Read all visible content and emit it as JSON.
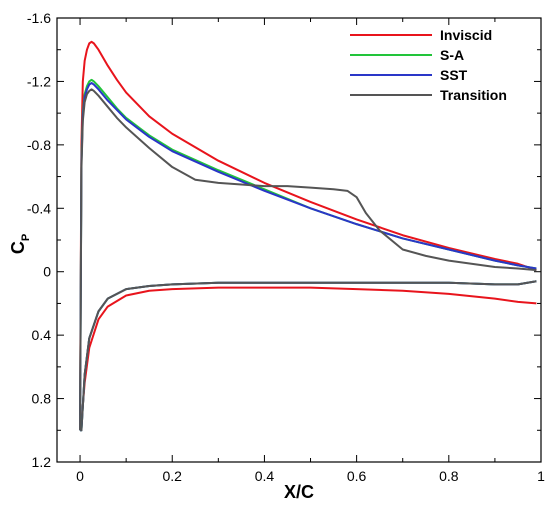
{
  "chart_data": {
    "type": "line",
    "title": "",
    "xlabel": "X/C",
    "ylabel_main": "C",
    "ylabel_sub": "P",
    "xlim": [
      -0.05,
      1.0
    ],
    "ylim": [
      -1.6,
      1.2
    ],
    "y_inverted": true,
    "x_ticks": [
      0,
      0.2,
      0.4,
      0.6,
      0.8,
      1
    ],
    "x_tick_labels": [
      "0",
      "0.2",
      "0.4",
      "0.6",
      "0.8",
      "1"
    ],
    "y_ticks": [
      -1.6,
      -1.2,
      -0.8,
      -0.4,
      0,
      0.4,
      0.8,
      1.2
    ],
    "y_tick_labels": [
      "-1.6",
      "-1.2",
      "-0.8",
      "-0.4",
      "0",
      "0.4",
      "0.8",
      "1.2"
    ],
    "grid": false,
    "legend_position": "top-right",
    "series": [
      {
        "name": "Inviscid",
        "color": "#e8141c",
        "upper": {
          "x": [
            0.0,
            0.003,
            0.006,
            0.01,
            0.015,
            0.02,
            0.025,
            0.03,
            0.04,
            0.06,
            0.08,
            0.1,
            0.15,
            0.2,
            0.3,
            0.4,
            0.5,
            0.6,
            0.7,
            0.8,
            0.9,
            0.95,
            0.99
          ],
          "y": [
            0.9,
            -0.8,
            -1.2,
            -1.33,
            -1.4,
            -1.44,
            -1.45,
            -1.44,
            -1.4,
            -1.3,
            -1.21,
            -1.13,
            -0.98,
            -0.87,
            -0.7,
            -0.56,
            -0.44,
            -0.33,
            -0.23,
            -0.15,
            -0.08,
            -0.05,
            -0.01
          ]
        },
        "lower": {
          "x": [
            0.0,
            0.003,
            0.01,
            0.02,
            0.04,
            0.06,
            0.1,
            0.15,
            0.2,
            0.3,
            0.4,
            0.5,
            0.6,
            0.7,
            0.8,
            0.9,
            0.95,
            0.99
          ],
          "y": [
            0.9,
            0.95,
            0.7,
            0.48,
            0.3,
            0.22,
            0.15,
            0.12,
            0.11,
            0.1,
            0.1,
            0.1,
            0.11,
            0.12,
            0.14,
            0.17,
            0.19,
            0.2
          ]
        }
      },
      {
        "name": "S-A",
        "color": "#22c43a",
        "upper": {
          "x": [
            0.0,
            0.003,
            0.006,
            0.01,
            0.015,
            0.02,
            0.025,
            0.03,
            0.04,
            0.06,
            0.08,
            0.1,
            0.15,
            0.2,
            0.3,
            0.4,
            0.5,
            0.6,
            0.7,
            0.8,
            0.9,
            0.95,
            0.99
          ],
          "y": [
            1.0,
            -0.7,
            -1.0,
            -1.12,
            -1.17,
            -1.2,
            -1.21,
            -1.2,
            -1.17,
            -1.1,
            -1.03,
            -0.97,
            -0.86,
            -0.77,
            -0.64,
            -0.52,
            -0.4,
            -0.3,
            -0.21,
            -0.14,
            -0.07,
            -0.04,
            -0.02
          ]
        },
        "lower": {
          "x": [
            0.0,
            0.003,
            0.01,
            0.02,
            0.04,
            0.06,
            0.1,
            0.15,
            0.2,
            0.3,
            0.4,
            0.5,
            0.6,
            0.7,
            0.8,
            0.9,
            0.95,
            0.99
          ],
          "y": [
            1.0,
            1.0,
            0.65,
            0.42,
            0.25,
            0.17,
            0.11,
            0.09,
            0.08,
            0.07,
            0.07,
            0.07,
            0.07,
            0.07,
            0.07,
            0.08,
            0.08,
            0.06
          ]
        }
      },
      {
        "name": "SST",
        "color": "#2a36c8",
        "upper": {
          "x": [
            0.0,
            0.003,
            0.006,
            0.01,
            0.015,
            0.02,
            0.025,
            0.03,
            0.04,
            0.06,
            0.08,
            0.1,
            0.15,
            0.2,
            0.3,
            0.4,
            0.5,
            0.6,
            0.7,
            0.8,
            0.9,
            0.95,
            0.99
          ],
          "y": [
            1.0,
            -0.68,
            -0.98,
            -1.1,
            -1.15,
            -1.18,
            -1.19,
            -1.18,
            -1.15,
            -1.08,
            -1.02,
            -0.96,
            -0.85,
            -0.76,
            -0.63,
            -0.51,
            -0.4,
            -0.3,
            -0.21,
            -0.14,
            -0.07,
            -0.04,
            -0.02
          ]
        },
        "lower": {
          "x": [
            0.0,
            0.003,
            0.01,
            0.02,
            0.04,
            0.06,
            0.1,
            0.15,
            0.2,
            0.3,
            0.4,
            0.5,
            0.6,
            0.7,
            0.8,
            0.9,
            0.95,
            0.99
          ],
          "y": [
            1.0,
            1.0,
            0.65,
            0.42,
            0.25,
            0.17,
            0.11,
            0.09,
            0.08,
            0.07,
            0.07,
            0.07,
            0.07,
            0.07,
            0.07,
            0.08,
            0.08,
            0.06
          ]
        }
      },
      {
        "name": "Transition",
        "color": "#555555",
        "upper": {
          "x": [
            0.0,
            0.003,
            0.006,
            0.01,
            0.015,
            0.02,
            0.025,
            0.03,
            0.04,
            0.06,
            0.08,
            0.1,
            0.15,
            0.2,
            0.25,
            0.3,
            0.35,
            0.4,
            0.45,
            0.5,
            0.55,
            0.58,
            0.6,
            0.62,
            0.65,
            0.7,
            0.75,
            0.8,
            0.9,
            0.95,
            0.99
          ],
          "y": [
            1.0,
            -0.65,
            -0.95,
            -1.07,
            -1.12,
            -1.14,
            -1.15,
            -1.14,
            -1.11,
            -1.04,
            -0.97,
            -0.91,
            -0.78,
            -0.66,
            -0.58,
            -0.56,
            -0.55,
            -0.54,
            -0.54,
            -0.53,
            -0.52,
            -0.51,
            -0.47,
            -0.37,
            -0.26,
            -0.14,
            -0.1,
            -0.07,
            -0.03,
            -0.02,
            -0.01
          ]
        },
        "lower": {
          "x": [
            0.0,
            0.003,
            0.01,
            0.02,
            0.04,
            0.06,
            0.1,
            0.15,
            0.2,
            0.3,
            0.4,
            0.5,
            0.6,
            0.7,
            0.8,
            0.9,
            0.95,
            0.99
          ],
          "y": [
            1.0,
            1.0,
            0.65,
            0.42,
            0.25,
            0.17,
            0.11,
            0.09,
            0.08,
            0.07,
            0.07,
            0.07,
            0.07,
            0.07,
            0.07,
            0.08,
            0.08,
            0.06
          ]
        }
      }
    ]
  }
}
